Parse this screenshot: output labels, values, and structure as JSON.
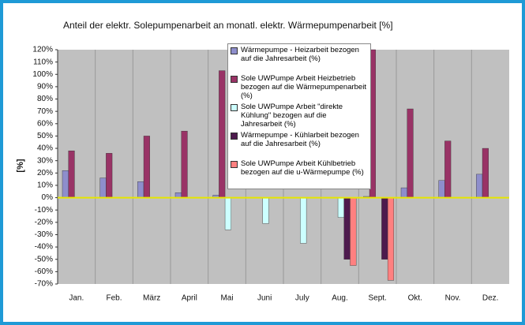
{
  "chart_data": {
    "type": "bar",
    "title": "Anteil der elektr. Solepumpenarbeit an monatl. elektr. Wärmepumpenarbeit  [%]",
    "y_label": "[%]",
    "categories": [
      "Jan.",
      "Feb.",
      "März",
      "April",
      "Mai",
      "Juni",
      "July",
      "Aug.",
      "Sept.",
      "Okt.",
      "Nov.",
      "Dez."
    ],
    "series": [
      {
        "name": "Wärmepumpe - Heizarbeit bezogen auf die Jahresarbeit (%)",
        "color": "#8e8ecc",
        "values": [
          22,
          16,
          13,
          4,
          2,
          null,
          null,
          null,
          1,
          8,
          14,
          19
        ]
      },
      {
        "name": "Sole UWPumpe Arbeit Heizbetrieb bezogen auf die Wärmepumpenarbeit (%)",
        "color": "#993366",
        "values": [
          38,
          36,
          50,
          54,
          103,
          null,
          null,
          null,
          120,
          72,
          46,
          40
        ]
      },
      {
        "name": "Sole UWPumpe Arbeit \"direkte Kühlung\" bezogen auf die Jahresarbeit (%)",
        "color": "#ccffff",
        "values": [
          null,
          null,
          null,
          null,
          -26,
          -21,
          -37,
          -16,
          null,
          null,
          null,
          null
        ]
      },
      {
        "name": "Wärmepumpe - Kühlarbeit bezogen auf die Jahresarbeit (%)",
        "color": "#4d1a4d",
        "values": [
          null,
          null,
          null,
          null,
          null,
          null,
          null,
          -50,
          -50,
          null,
          null,
          null
        ]
      },
      {
        "name": "Sole UWPumpe Arbeit Kühlbetrieb bezogen auf die  u-Wärmepumpe (%)",
        "color": "#ff8080",
        "values": [
          null,
          null,
          null,
          null,
          null,
          null,
          null,
          -55,
          -67,
          null,
          null,
          null
        ]
      }
    ],
    "ylim": [
      -70,
      120
    ],
    "yticks": [
      {
        "value": -70,
        "label": "-70%"
      },
      {
        "value": -60,
        "label": "-60%"
      },
      {
        "value": -50,
        "label": "-50%"
      },
      {
        "value": -40,
        "label": "-40%"
      },
      {
        "value": -30,
        "label": "-30%"
      },
      {
        "value": -20,
        "label": "-20%"
      },
      {
        "value": -10,
        "label": "-10%"
      },
      {
        "value": 0,
        "label": "0%"
      },
      {
        "value": 10,
        "label": "10%"
      },
      {
        "value": 20,
        "label": "20%"
      },
      {
        "value": 30,
        "label": "30%"
      },
      {
        "value": 40,
        "label": "40%"
      },
      {
        "value": 50,
        "label": "50%"
      },
      {
        "value": 60,
        "label": "60%"
      },
      {
        "value": 70,
        "label": "70%"
      },
      {
        "value": 80,
        "label": "80%"
      },
      {
        "value": 90,
        "label": "90%"
      },
      {
        "value": 100,
        "label": "100%"
      },
      {
        "value": 110,
        "label": "110%"
      },
      {
        "value": 120,
        "label": "120%"
      }
    ],
    "grid": false
  }
}
